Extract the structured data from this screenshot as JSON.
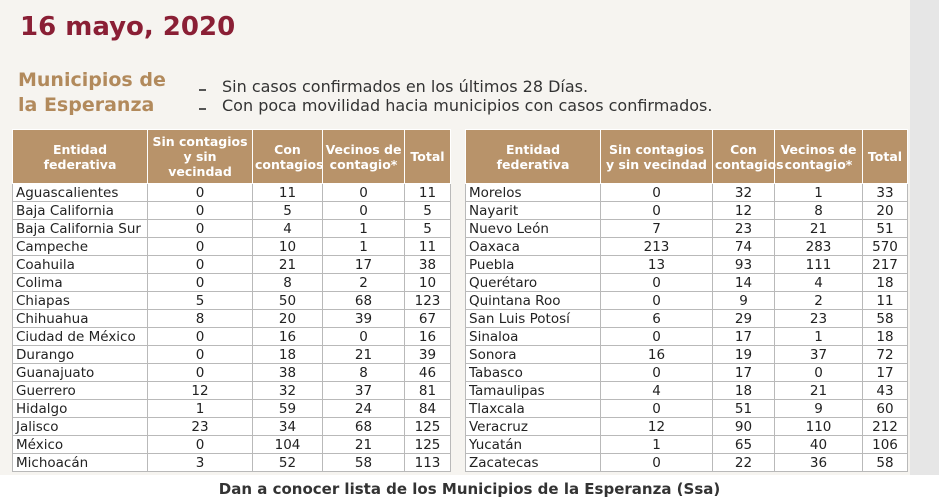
{
  "header": {
    "date": "16 mayo, 2020",
    "section_title": "Municipios de la Esperanza",
    "criteria": [
      "Sin casos confirmados en los últimos 28 Días.",
      "Con poca movilidad hacia municipios con casos confirmados."
    ]
  },
  "tables": [
    {
      "headers": [
        "Entidad federativa",
        "Sin contagios y sin vecindad",
        "Con contagios",
        "Vecinos de contagio*",
        "Total"
      ],
      "rows": [
        [
          "Aguascalientes",
          0,
          11,
          0,
          11
        ],
        [
          "Baja California",
          0,
          5,
          0,
          5
        ],
        [
          "Baja California Sur",
          0,
          4,
          1,
          5
        ],
        [
          "Campeche",
          0,
          10,
          1,
          11
        ],
        [
          "Coahuila",
          0,
          21,
          17,
          38
        ],
        [
          "Colima",
          0,
          8,
          2,
          10
        ],
        [
          "Chiapas",
          5,
          50,
          68,
          123
        ],
        [
          "Chihuahua",
          8,
          20,
          39,
          67
        ],
        [
          "Ciudad de México",
          0,
          16,
          0,
          16
        ],
        [
          "Durango",
          0,
          18,
          21,
          39
        ],
        [
          "Guanajuato",
          0,
          38,
          8,
          46
        ],
        [
          "Guerrero",
          12,
          32,
          37,
          81
        ],
        [
          "Hidalgo",
          1,
          59,
          24,
          84
        ],
        [
          "Jalisco",
          23,
          34,
          68,
          125
        ],
        [
          "México",
          0,
          104,
          21,
          125
        ],
        [
          "Michoacán",
          3,
          52,
          58,
          113
        ]
      ]
    },
    {
      "headers": [
        "Entidad federativa",
        "Sin contagios y sin vecindad",
        "Con contagios",
        "Vecinos de contagio*",
        "Total"
      ],
      "rows": [
        [
          "Morelos",
          0,
          32,
          1,
          33
        ],
        [
          "Nayarit",
          0,
          12,
          8,
          20
        ],
        [
          "Nuevo León",
          7,
          23,
          21,
          51
        ],
        [
          "Oaxaca",
          213,
          74,
          283,
          570
        ],
        [
          "Puebla",
          13,
          93,
          111,
          217
        ],
        [
          "Querétaro",
          0,
          14,
          4,
          18
        ],
        [
          "Quintana Roo",
          0,
          9,
          2,
          11
        ],
        [
          "San Luis Potosí",
          6,
          29,
          23,
          58
        ],
        [
          "Sinaloa",
          0,
          17,
          1,
          18
        ],
        [
          "Sonora",
          16,
          19,
          37,
          72
        ],
        [
          "Tabasco",
          0,
          17,
          0,
          17
        ],
        [
          "Tamaulipas",
          4,
          18,
          21,
          43
        ],
        [
          "Tlaxcala",
          0,
          51,
          9,
          60
        ],
        [
          "Veracruz",
          12,
          90,
          110,
          212
        ],
        [
          "Yucatán",
          1,
          65,
          40,
          106
        ],
        [
          "Zacatecas",
          0,
          22,
          36,
          58
        ]
      ]
    }
  ],
  "caption": "Dan a conocer lista de los Municipios de la Esperanza (Ssa)"
}
